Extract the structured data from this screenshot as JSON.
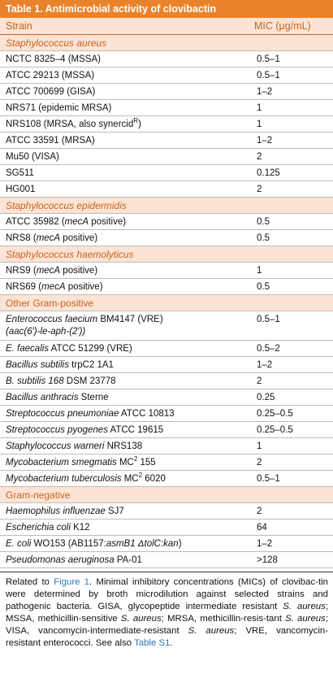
{
  "title": "Table 1.  Antimicrobial activity of clovibactin",
  "headers": {
    "strain": "Strain",
    "mic": "MIC (μg/mL)"
  },
  "groups": [
    {
      "label": "Staphylococcus aureus",
      "italic": true
    },
    {
      "label": "Staphylococcus epidermidis",
      "italic": true
    },
    {
      "label": "Staphylococcus haemolyticus",
      "italic": true
    },
    {
      "label": "Other Gram-positive",
      "italic": false
    },
    {
      "label": "Gram-negative",
      "italic": false
    }
  ],
  "rows": {
    "aureus": [
      {
        "strain": "NCTC 8325–4 (MSSA)",
        "mic": "0.5–1"
      },
      {
        "strain": "ATCC 29213 (MSSA)",
        "mic": "0.5–1"
      },
      {
        "strain": "ATCC 700699 (GISA)",
        "mic": "1–2"
      },
      {
        "strain": "NRS71 (epidemic MRSA)",
        "mic": "1"
      },
      {
        "strain": "NRS108 (MRSA, also synercid",
        "sup": "R",
        "tail": ")",
        "mic": "1"
      },
      {
        "strain": "ATCC 33591 (MRSA)",
        "mic": "1–2"
      },
      {
        "strain": "Mu50 (VISA)",
        "mic": "2"
      },
      {
        "strain": "SG511",
        "mic": "0.125"
      },
      {
        "strain": "HG001",
        "mic": "2"
      }
    ],
    "epidermidis": [
      {
        "strain": "ATCC 35982 (",
        "it": "mecA",
        "tail": " positive)",
        "mic": "0.5"
      },
      {
        "strain": "NRS8 (",
        "it": "mecA",
        "tail": " positive)",
        "mic": "0.5"
      }
    ],
    "haemolyticus": [
      {
        "strain": "NRS9 (",
        "it": "mecA",
        "tail": " positive)",
        "mic": "1"
      },
      {
        "strain": "NRS69 (",
        "it": "mecA",
        "tail": " positive)",
        "mic": "0.5"
      }
    ],
    "other": [
      {
        "line1_it": "Enterococcus faecium",
        "line1": " BM4147 (VRE)",
        "line2": "(aac(6′)-le-aph-(2′))",
        "mic": "0.5–1"
      },
      {
        "it": "E. faecalis",
        "strain": " ATCC 51299 (VRE)",
        "mic": "0.5–2"
      },
      {
        "it": "Bacillus subtilis",
        "strain": " trpC2 1A1",
        "mic": "1–2"
      },
      {
        "it": "B. subtilis 168",
        "strain": " DSM 23778",
        "mic": "2"
      },
      {
        "it": "Bacillus anthracis",
        "strain": " Sterne",
        "mic": "0.25"
      },
      {
        "it": "Streptococcus pneumoniae",
        "strain": " ATCC 10813",
        "mic": "0.25–0.5"
      },
      {
        "it": "Streptococcus pyogenes",
        "strain": " ATCC 19615",
        "mic": "0.25–0.5"
      },
      {
        "it": "Staphylococcus warneri",
        "strain": " NRS138",
        "mic": "1"
      },
      {
        "it": "Mycobacterium smegmatis",
        "strain": " MC",
        "sup": "2",
        "tail": " 155",
        "mic": "2"
      },
      {
        "it": "Mycobacterium tuberculosis",
        "strain": " MC",
        "sup": "2",
        "tail": " 6020",
        "mic": "0.5–1"
      }
    ],
    "negative": [
      {
        "it": "Haemophilus influenzae",
        "strain": " SJ7",
        "mic": "2"
      },
      {
        "it": "Escherichia coli",
        "strain": " K12",
        "mic": "64"
      },
      {
        "it": "E. coli",
        "strain": " WO153 (AB1157:",
        "it2": "asmB1 ΔtolC:kan",
        "tail": ")",
        "mic": "1–2"
      },
      {
        "it": "Pseudomonas aeruginosa",
        "strain": " PA-01",
        "mic": ">128"
      }
    ]
  },
  "caption": {
    "p1": "Related to ",
    "link1": "Figure 1",
    "p2": ". Minimal inhibitory concentrations (MICs) of clovibac-tin were determined by broth microdilution against selected strains and pathogenic bacteria. GISA, glycopeptide intermediate resistant ",
    "it1": "S. aureus",
    "p3": "; MSSA, methicillin-sensitive ",
    "it2": "S. aureus",
    "p4": "; MRSA, methicillin-resis-tant ",
    "it3": "S. aureus",
    "p5": "; VISA, vancomycin-intermediate-resistant ",
    "it4": "S. aureus",
    "p6": "; VRE, vancomycin-resistant enterococci. See also ",
    "link2": "Table S1",
    "p7": "."
  }
}
